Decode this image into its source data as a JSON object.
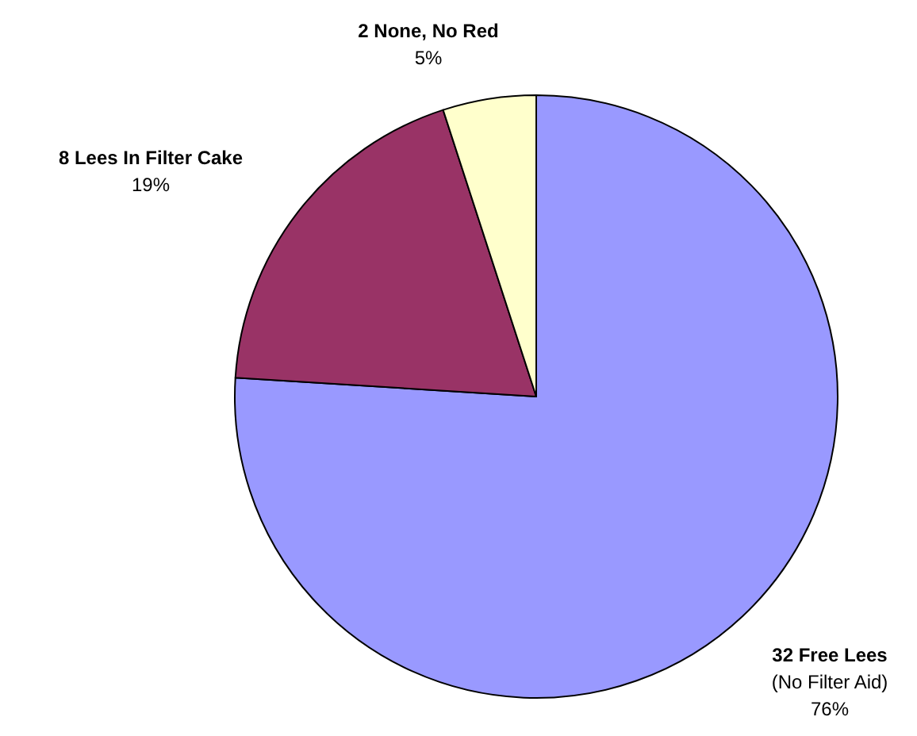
{
  "chart_data": {
    "type": "pie",
    "categories": [
      "32 Free Lees\n(No Filter Aid)",
      "8 Lees In Filter Cake",
      "2 None, No Red"
    ],
    "values": [
      76,
      19,
      5
    ],
    "value_labels": [
      "76%",
      "19%",
      "5%"
    ],
    "colors": [
      "#9999ff",
      "#993366",
      "#ffffcc"
    ]
  }
}
